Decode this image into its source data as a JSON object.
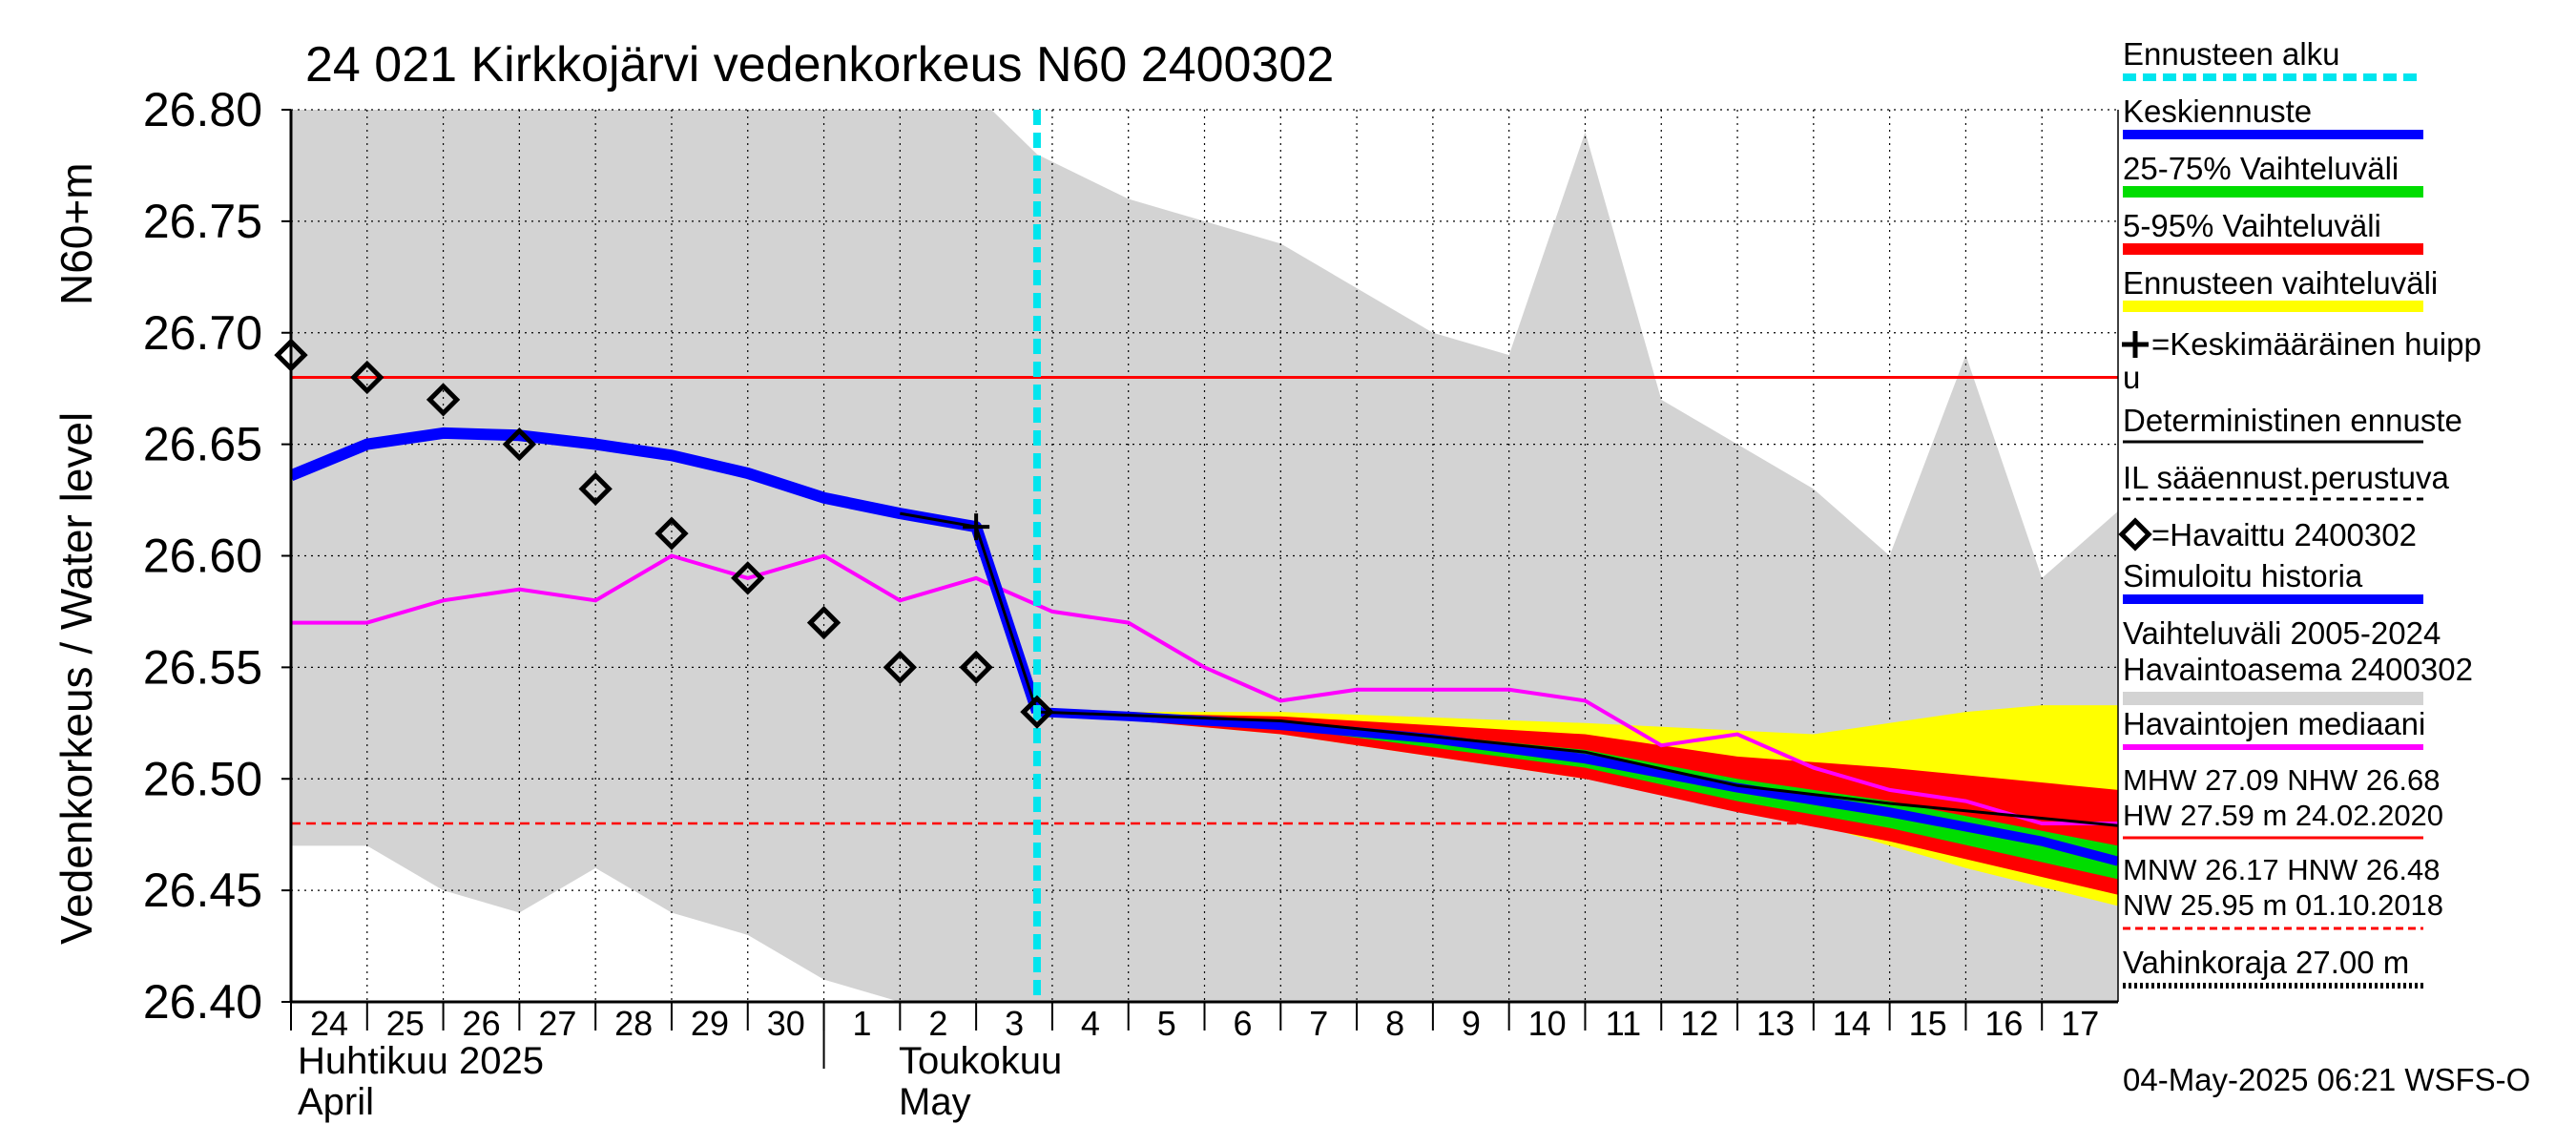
{
  "chart_data": {
    "type": "line",
    "title": "24 021 Kirkkojärvi vedenkorkeus N60 2400302",
    "ylabel_main": "Vedenkorkeus / Water level",
    "ylabel_unit": "N60+m",
    "ylim": [
      26.4,
      26.8
    ],
    "y_ticks": [
      "26.40",
      "26.45",
      "26.50",
      "26.55",
      "26.60",
      "26.65",
      "26.70",
      "26.75",
      "26.80"
    ],
    "x_day_range": [
      -7,
      17
    ],
    "x_ticks": [
      {
        "day": -7,
        "label": "24"
      },
      {
        "day": -6,
        "label": "25"
      },
      {
        "day": -5,
        "label": "26"
      },
      {
        "day": -4,
        "label": "27"
      },
      {
        "day": -3,
        "label": "28"
      },
      {
        "day": -2,
        "label": "29"
      },
      {
        "day": -1,
        "label": "30"
      },
      {
        "day": 0,
        "label": "1"
      },
      {
        "day": 1,
        "label": "2"
      },
      {
        "day": 2,
        "label": "3"
      },
      {
        "day": 3,
        "label": "4"
      },
      {
        "day": 4,
        "label": "5"
      },
      {
        "day": 5,
        "label": "6"
      },
      {
        "day": 6,
        "label": "7"
      },
      {
        "day": 7,
        "label": "8"
      },
      {
        "day": 8,
        "label": "9"
      },
      {
        "day": 9,
        "label": "10"
      },
      {
        "day": 10,
        "label": "11"
      },
      {
        "day": 11,
        "label": "12"
      },
      {
        "day": 12,
        "label": "13"
      },
      {
        "day": 13,
        "label": "14"
      },
      {
        "day": 14,
        "label": "15"
      },
      {
        "day": 15,
        "label": "16"
      },
      {
        "day": 16,
        "label": "17"
      }
    ],
    "month_labels": {
      "april_fi": "Huhtikuu  2025",
      "april_en": "April",
      "may_fi": "Toukokuu",
      "may_en": "May"
    },
    "forecast_start_day": 2.8,
    "reference_lines": {
      "solid_red": 26.68,
      "dashed_red": 26.48
    },
    "history_range": {
      "upper": [
        {
          "x": -7,
          "y": 26.8
        },
        {
          "x": 2.2,
          "y": 26.8
        },
        {
          "x": 2.8,
          "y": 26.78
        },
        {
          "x": 4,
          "y": 26.76
        },
        {
          "x": 6,
          "y": 26.74
        },
        {
          "x": 8,
          "y": 26.7
        },
        {
          "x": 9,
          "y": 26.69
        },
        {
          "x": 10,
          "y": 26.79
        },
        {
          "x": 11,
          "y": 26.67
        },
        {
          "x": 13,
          "y": 26.63
        },
        {
          "x": 14,
          "y": 26.6
        },
        {
          "x": 15,
          "y": 26.69
        },
        {
          "x": 16,
          "y": 26.59
        },
        {
          "x": 17,
          "y": 26.62
        }
      ],
      "lower": [
        {
          "x": -7,
          "y": 26.47
        },
        {
          "x": -6,
          "y": 26.47
        },
        {
          "x": -5,
          "y": 26.45
        },
        {
          "x": -4,
          "y": 26.44
        },
        {
          "x": -3,
          "y": 26.46
        },
        {
          "x": -2,
          "y": 26.44
        },
        {
          "x": -1,
          "y": 26.43
        },
        {
          "x": 0,
          "y": 26.41
        },
        {
          "x": 1,
          "y": 26.4
        },
        {
          "x": 17,
          "y": 26.4
        }
      ]
    },
    "forecast_range_yellow": {
      "upper": [
        {
          "x": 2.8,
          "y": 26.53
        },
        {
          "x": 6,
          "y": 26.53
        },
        {
          "x": 10,
          "y": 26.525
        },
        {
          "x": 13,
          "y": 26.52
        },
        {
          "x": 14,
          "y": 26.525
        },
        {
          "x": 15,
          "y": 26.53
        },
        {
          "x": 16,
          "y": 26.533
        },
        {
          "x": 17,
          "y": 26.533
        }
      ],
      "lower": [
        {
          "x": 2.8,
          "y": 26.53
        },
        {
          "x": 6,
          "y": 26.52
        },
        {
          "x": 10,
          "y": 26.5
        },
        {
          "x": 13,
          "y": 26.48
        },
        {
          "x": 15,
          "y": 26.46
        },
        {
          "x": 17,
          "y": 26.443
        }
      ]
    },
    "band_5_95": {
      "upper": [
        {
          "x": 2.8,
          "y": 26.53
        },
        {
          "x": 6,
          "y": 26.528
        },
        {
          "x": 10,
          "y": 26.52
        },
        {
          "x": 12,
          "y": 26.51
        },
        {
          "x": 14,
          "y": 26.505
        },
        {
          "x": 17,
          "y": 26.495
        }
      ],
      "lower": [
        {
          "x": 2.8,
          "y": 26.53
        },
        {
          "x": 6,
          "y": 26.52
        },
        {
          "x": 10,
          "y": 26.5
        },
        {
          "x": 12,
          "y": 26.485
        },
        {
          "x": 14,
          "y": 26.472
        },
        {
          "x": 17,
          "y": 26.448
        }
      ]
    },
    "band_25_75": {
      "upper": [
        {
          "x": 2.8,
          "y": 26.53
        },
        {
          "x": 6,
          "y": 26.526
        },
        {
          "x": 10,
          "y": 26.513
        },
        {
          "x": 12,
          "y": 26.5
        },
        {
          "x": 14,
          "y": 26.49
        },
        {
          "x": 17,
          "y": 26.47
        }
      ],
      "lower": [
        {
          "x": 2.8,
          "y": 26.53
        },
        {
          "x": 6,
          "y": 26.523
        },
        {
          "x": 10,
          "y": 26.505
        },
        {
          "x": 12,
          "y": 26.49
        },
        {
          "x": 14,
          "y": 26.478
        },
        {
          "x": 17,
          "y": 26.455
        }
      ]
    },
    "simulated_history": [
      {
        "x": -7,
        "y": 26.636
      },
      {
        "x": -6,
        "y": 26.65
      },
      {
        "x": -5,
        "y": 26.655
      },
      {
        "x": -4,
        "y": 26.654
      },
      {
        "x": -3,
        "y": 26.65
      },
      {
        "x": -2,
        "y": 26.645
      },
      {
        "x": -1,
        "y": 26.637
      },
      {
        "x": 0,
        "y": 26.626
      },
      {
        "x": 1,
        "y": 26.619
      },
      {
        "x": 2,
        "y": 26.613
      },
      {
        "x": 2.8,
        "y": 26.53
      }
    ],
    "mean_forecast": [
      {
        "x": 2.8,
        "y": 26.53
      },
      {
        "x": 4,
        "y": 26.528
      },
      {
        "x": 6,
        "y": 26.524
      },
      {
        "x": 8,
        "y": 26.518
      },
      {
        "x": 10,
        "y": 26.509
      },
      {
        "x": 12,
        "y": 26.496
      },
      {
        "x": 14,
        "y": 26.485
      },
      {
        "x": 16,
        "y": 26.472
      },
      {
        "x": 17,
        "y": 26.463
      }
    ],
    "deterministic_forecast": [
      {
        "x": 2.8,
        "y": 26.53
      },
      {
        "x": 6,
        "y": 26.526
      },
      {
        "x": 10,
        "y": 26.512
      },
      {
        "x": 12,
        "y": 26.497
      },
      {
        "x": 14,
        "y": 26.489
      },
      {
        "x": 17,
        "y": 26.479
      }
    ],
    "observed": [
      {
        "x": -7,
        "y": 26.69
      },
      {
        "x": -6,
        "y": 26.68
      },
      {
        "x": -5,
        "y": 26.67
      },
      {
        "x": -4,
        "y": 26.65
      },
      {
        "x": -3,
        "y": 26.63
      },
      {
        "x": -2,
        "y": 26.61
      },
      {
        "x": -1,
        "y": 26.59
      },
      {
        "x": 0,
        "y": 26.57
      },
      {
        "x": 1,
        "y": 26.55
      },
      {
        "x": 2,
        "y": 26.55
      },
      {
        "x": 2.8,
        "y": 26.53
      }
    ],
    "median_observed": [
      {
        "x": -7,
        "y": 26.57
      },
      {
        "x": -6,
        "y": 26.57
      },
      {
        "x": -5,
        "y": 26.58
      },
      {
        "x": -4,
        "y": 26.585
      },
      {
        "x": -3,
        "y": 26.58
      },
      {
        "x": -2,
        "y": 26.6
      },
      {
        "x": -1,
        "y": 26.59
      },
      {
        "x": 0,
        "y": 26.6
      },
      {
        "x": 1,
        "y": 26.58
      },
      {
        "x": 2,
        "y": 26.59
      },
      {
        "x": 3,
        "y": 26.575
      },
      {
        "x": 4,
        "y": 26.57
      },
      {
        "x": 5,
        "y": 26.55
      },
      {
        "x": 6,
        "y": 26.535
      },
      {
        "x": 7,
        "y": 26.54
      },
      {
        "x": 8,
        "y": 26.54
      },
      {
        "x": 9,
        "y": 26.54
      },
      {
        "x": 10,
        "y": 26.535
      },
      {
        "x": 11,
        "y": 26.515
      },
      {
        "x": 12,
        "y": 26.52
      },
      {
        "x": 13,
        "y": 26.505
      },
      {
        "x": 14,
        "y": 26.495
      },
      {
        "x": 15,
        "y": 26.49
      },
      {
        "x": 16,
        "y": 26.48
      },
      {
        "x": 17,
        "y": 26.48
      }
    ],
    "mean_peak_marker": {
      "x": 2,
      "y": 26.613
    },
    "legend": {
      "forecast_start": "Ennusteen alku",
      "mean_forecast": "Keskiennuste",
      "band_25_75": "25-75% Vaihteluväli",
      "band_5_95": "5-95% Vaihteluväli",
      "forecast_range": "Ennusteen vaihteluväli",
      "mean_peak_line1": "=Keskimääräinen huipp",
      "mean_peak_line2": "u",
      "deterministic": "Deterministinen ennuste",
      "il_forecast": "IL sääennust.perustuva",
      "observed": "=Havaittu 2400302",
      "simulated": "Simuloitu historia",
      "range_line1": "Vaihteluväli 2005-2024",
      "range_line2": " Havaintoasema 2400302",
      "median": "Havaintojen mediaani",
      "mhw_line": "MHW  27.09 NHW  26.68",
      "hw_line": "HW  27.59 m 24.02.2020",
      "mnw_line": "MNW  26.17 HNW  26.48",
      "nw_line": "NW  25.95 m 01.10.2018",
      "damage_level": "Vahinkoraja 27.00 m"
    },
    "timestamp": "04-May-2025 06:21 WSFS-O",
    "colors": {
      "history_fill": "#d3d3d3",
      "forecast_start": "#00e5ee",
      "mean": "#0000ff",
      "band_25_75": "#00dd00",
      "band_5_95": "#ff0000",
      "forecast_range": "#ffff00",
      "median": "#ff00ff",
      "simulated": "#0000ff",
      "reference": "#ff0000"
    }
  }
}
